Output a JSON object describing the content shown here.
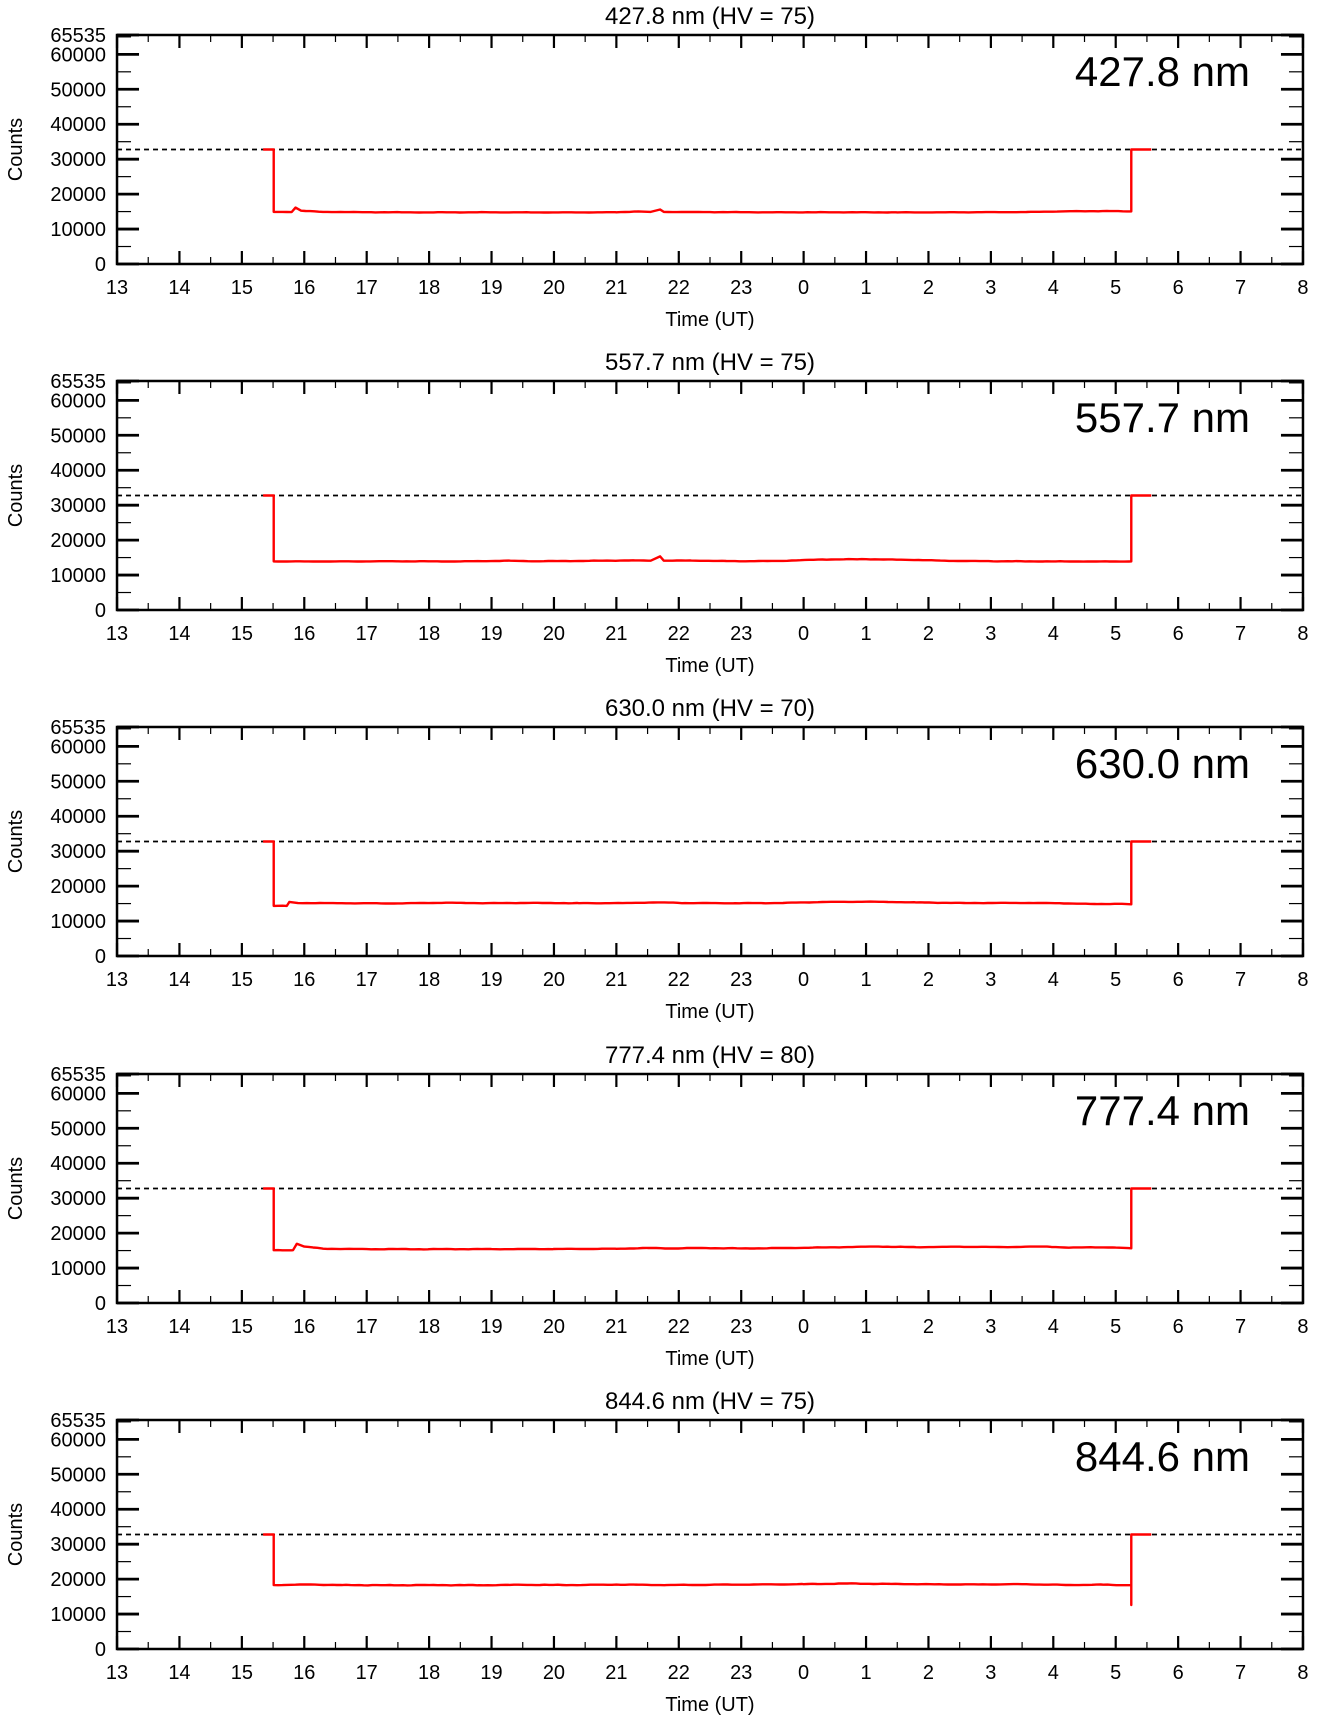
{
  "page": {
    "background": "#ffffff",
    "description_visible": "Five stacked photometer count panels"
  },
  "axes": {
    "xlabel": "Time (UT)",
    "ylabel": "Counts",
    "x_range": [
      13,
      32
    ],
    "x_unit": "UT hours (values 24-32 shown as 0-8 next day)",
    "x_ticks": {
      "values": [
        13,
        14,
        15,
        16,
        17,
        18,
        19,
        20,
        21,
        22,
        23,
        24,
        25,
        26,
        27,
        28,
        29,
        30,
        31,
        32
      ],
      "labels": [
        "13",
        "14",
        "15",
        "16",
        "17",
        "18",
        "19",
        "20",
        "21",
        "22",
        "23",
        "0",
        "1",
        "2",
        "3",
        "4",
        "5",
        "6",
        "7",
        "8"
      ],
      "minor_step": 0.5
    },
    "y_range": [
      0,
      65535
    ],
    "y_ticks": {
      "values": [
        0,
        10000,
        20000,
        30000,
        40000,
        50000,
        60000,
        65535
      ],
      "labels": [
        "0",
        "10000",
        "20000",
        "30000",
        "40000",
        "50000",
        "60000",
        "65535"
      ],
      "minor_step": 5000
    },
    "saturation_level": 32767,
    "saturation_line_style": "dashed",
    "line_color": "#ff0000",
    "axis_color": "#000000",
    "grid": false,
    "legend": false
  },
  "chart_data": [
    {
      "type": "line",
      "title": "427.8 nm (HV = 75)",
      "wavelength_label": "427.8 nm",
      "hv": 75,
      "xlabel": "Time (UT)",
      "ylabel": "Counts",
      "xlim": [
        13,
        32
      ],
      "ylim": [
        0,
        65535
      ],
      "saturation_level": 32767,
      "baseline_counts": 14800,
      "noise_amplitude": 90,
      "series": [
        {
          "name": "counts",
          "color": "#ff0000",
          "points": [
            [
              15.34,
              32767
            ],
            [
              15.51,
              32767
            ],
            [
              15.51,
              14900
            ],
            [
              15.8,
              14900
            ],
            [
              15.86,
              16150
            ],
            [
              15.95,
              15250
            ],
            [
              16.3,
              14900
            ],
            [
              17.0,
              14820
            ],
            [
              18.0,
              14780
            ],
            [
              19.0,
              14800
            ],
            [
              20.0,
              14760
            ],
            [
              21.0,
              14800
            ],
            [
              21.35,
              15050
            ],
            [
              21.55,
              14900
            ],
            [
              21.7,
              15600
            ],
            [
              21.76,
              14900
            ],
            [
              22.5,
              14850
            ],
            [
              23.5,
              14800
            ],
            [
              24.5,
              14800
            ],
            [
              25.5,
              14780
            ],
            [
              26.5,
              14800
            ],
            [
              27.5,
              14850
            ],
            [
              28.3,
              15100
            ],
            [
              28.9,
              15150
            ],
            [
              29.2,
              15050
            ],
            [
              29.25,
              15050
            ],
            [
              29.25,
              32767
            ],
            [
              29.57,
              32767
            ]
          ]
        }
      ]
    },
    {
      "type": "line",
      "title": "557.7 nm (HV = 75)",
      "wavelength_label": "557.7 nm",
      "hv": 75,
      "xlabel": "Time (UT)",
      "ylabel": "Counts",
      "xlim": [
        13,
        32
      ],
      "ylim": [
        0,
        65535
      ],
      "saturation_level": 32767,
      "baseline_counts": 14000,
      "noise_amplitude": 110,
      "series": [
        {
          "name": "counts",
          "color": "#ff0000",
          "points": [
            [
              15.34,
              32767
            ],
            [
              15.51,
              32767
            ],
            [
              15.51,
              13900
            ],
            [
              16.5,
              13900
            ],
            [
              17.5,
              13950
            ],
            [
              18.5,
              13900
            ],
            [
              19.3,
              14100
            ],
            [
              19.7,
              13950
            ],
            [
              20.5,
              14050
            ],
            [
              21.3,
              14200
            ],
            [
              21.55,
              14100
            ],
            [
              21.7,
              15350
            ],
            [
              21.76,
              14100
            ],
            [
              22.2,
              14150
            ],
            [
              23.0,
              13950
            ],
            [
              23.6,
              14050
            ],
            [
              24.3,
              14450
            ],
            [
              25.0,
              14550
            ],
            [
              25.7,
              14350
            ],
            [
              26.4,
              14050
            ],
            [
              27.2,
              13950
            ],
            [
              28.2,
              13900
            ],
            [
              29.0,
              13880
            ],
            [
              29.25,
              13900
            ],
            [
              29.25,
              32767
            ],
            [
              29.57,
              32767
            ]
          ]
        }
      ]
    },
    {
      "type": "line",
      "title": "630.0 nm (HV = 70)",
      "wavelength_label": "630.0 nm",
      "hv": 70,
      "xlabel": "Time (UT)",
      "ylabel": "Counts",
      "xlim": [
        13,
        32
      ],
      "ylim": [
        0,
        65535
      ],
      "saturation_level": 32767,
      "baseline_counts": 15100,
      "noise_amplitude": 120,
      "series": [
        {
          "name": "counts",
          "color": "#ff0000",
          "points": [
            [
              15.34,
              32767
            ],
            [
              15.51,
              32767
            ],
            [
              15.51,
              14350
            ],
            [
              15.72,
              14350
            ],
            [
              15.76,
              15450
            ],
            [
              15.9,
              15150
            ],
            [
              16.6,
              15100
            ],
            [
              17.5,
              15050
            ],
            [
              18.3,
              15250
            ],
            [
              18.9,
              15100
            ],
            [
              19.6,
              15200
            ],
            [
              20.4,
              15100
            ],
            [
              21.1,
              15150
            ],
            [
              21.7,
              15350
            ],
            [
              22.1,
              15150
            ],
            [
              22.9,
              15100
            ],
            [
              23.6,
              15150
            ],
            [
              24.3,
              15450
            ],
            [
              25.0,
              15550
            ],
            [
              25.8,
              15350
            ],
            [
              26.6,
              15150
            ],
            [
              27.4,
              15200
            ],
            [
              28.1,
              15100
            ],
            [
              28.7,
              14850
            ],
            [
              29.1,
              14950
            ],
            [
              29.25,
              14800
            ],
            [
              29.25,
              32767
            ],
            [
              29.57,
              32767
            ]
          ]
        }
      ]
    },
    {
      "type": "line",
      "title": "777.4 nm (HV = 80)",
      "wavelength_label": "777.4 nm",
      "hv": 80,
      "xlabel": "Time (UT)",
      "ylabel": "Counts",
      "xlim": [
        13,
        32
      ],
      "ylim": [
        0,
        65535
      ],
      "saturation_level": 32767,
      "baseline_counts": 15500,
      "noise_amplitude": 150,
      "series": [
        {
          "name": "counts",
          "color": "#ff0000",
          "points": [
            [
              15.34,
              32767
            ],
            [
              15.51,
              32767
            ],
            [
              15.51,
              15100
            ],
            [
              15.82,
              15100
            ],
            [
              15.88,
              16950
            ],
            [
              16.0,
              16150
            ],
            [
              16.3,
              15550
            ],
            [
              17.0,
              15420
            ],
            [
              18.0,
              15400
            ],
            [
              19.0,
              15420
            ],
            [
              20.0,
              15450
            ],
            [
              21.0,
              15520
            ],
            [
              21.5,
              15750
            ],
            [
              21.85,
              15600
            ],
            [
              22.3,
              15750
            ],
            [
              23.0,
              15620
            ],
            [
              23.8,
              15750
            ],
            [
              24.5,
              15950
            ],
            [
              25.2,
              16150
            ],
            [
              25.8,
              15980
            ],
            [
              26.5,
              16100
            ],
            [
              27.2,
              16000
            ],
            [
              27.9,
              16150
            ],
            [
              28.25,
              15820
            ],
            [
              28.6,
              15980
            ],
            [
              29.0,
              15850
            ],
            [
              29.2,
              15700
            ],
            [
              29.25,
              15650
            ],
            [
              29.25,
              32767
            ],
            [
              29.57,
              32767
            ]
          ]
        }
      ]
    },
    {
      "type": "line",
      "title": "844.6 nm (HV = 75)",
      "wavelength_label": "844.6 nm",
      "hv": 75,
      "xlabel": "Time (UT)",
      "ylabel": "Counts",
      "xlim": [
        13,
        32
      ],
      "ylim": [
        0,
        65535
      ],
      "saturation_level": 32767,
      "baseline_counts": 18400,
      "noise_amplitude": 170,
      "series": [
        {
          "name": "counts",
          "color": "#ff0000",
          "points": [
            [
              15.34,
              32767
            ],
            [
              15.51,
              32767
            ],
            [
              15.51,
              18300
            ],
            [
              16.1,
              18450
            ],
            [
              16.6,
              18300
            ],
            [
              17.3,
              18250
            ],
            [
              18.0,
              18300
            ],
            [
              18.8,
              18250
            ],
            [
              19.5,
              18380
            ],
            [
              20.3,
              18300
            ],
            [
              21.0,
              18420
            ],
            [
              21.8,
              18300
            ],
            [
              22.5,
              18380
            ],
            [
              23.2,
              18450
            ],
            [
              24.0,
              18550
            ],
            [
              24.7,
              18750
            ],
            [
              25.4,
              18620
            ],
            [
              26.1,
              18520
            ],
            [
              26.8,
              18480
            ],
            [
              27.5,
              18550
            ],
            [
              28.2,
              18320
            ],
            [
              28.8,
              18400
            ],
            [
              29.15,
              18250
            ],
            [
              29.25,
              18300
            ],
            [
              29.25,
              12600
            ],
            [
              29.25,
              32767
            ],
            [
              29.57,
              32767
            ]
          ]
        }
      ]
    }
  ]
}
